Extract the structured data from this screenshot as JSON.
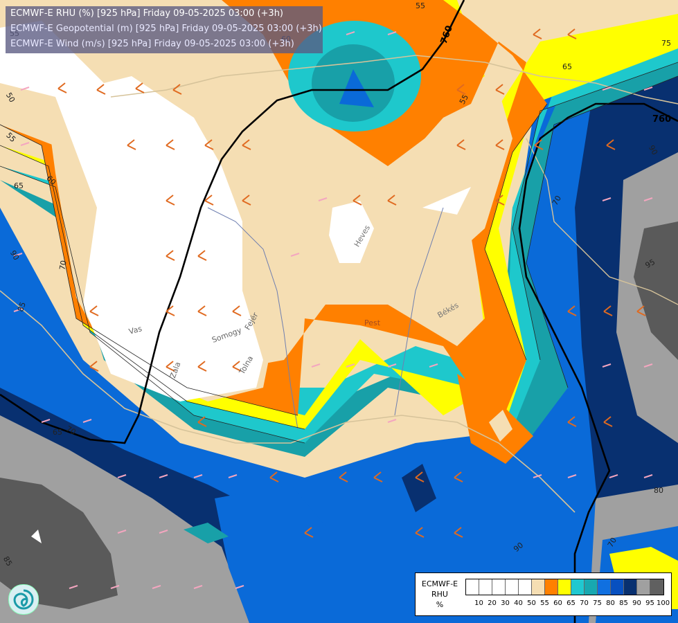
{
  "header": {
    "line1": "ECMWF-E RHU (%) [925 hPa] Friday 09-05-2025 03:00 (+3h)",
    "line2": "ECMWF-E Geopotential (m) [925 hPa] Friday 09-05-2025 03:00 (+3h)",
    "line3": "ECMWF-E Wind (m/s) [925 hPa] Friday 09-05-2025 03:00 (+3h)"
  },
  "legend": {
    "title_line1": "ECMWF-E",
    "title_line2": "RHU",
    "title_line3": "%",
    "swatches": [
      "#ffffff",
      "#ffffff",
      "#ffffff",
      "#ffffff",
      "#ffffff",
      "#f5deb3",
      "#ff8000",
      "#ffff00",
      "#20c8d0",
      "#18a8b0",
      "#1070e0",
      "#0850c0",
      "#083070",
      "#a0a0a0",
      "#606060"
    ],
    "labels": [
      "10",
      "20",
      "30",
      "40",
      "50",
      "55",
      "60",
      "65",
      "70",
      "75",
      "80",
      "85",
      "90",
      "95",
      "100"
    ]
  },
  "geopotential_labels": [
    "760",
    "760"
  ],
  "contour_labels": [
    "55",
    "50",
    "55",
    "60",
    "65",
    "70",
    "85",
    "90",
    "55",
    "65",
    "70",
    "75",
    "70",
    "80",
    "90",
    "90",
    "55",
    "60",
    "65",
    "70",
    "85",
    "95"
  ],
  "place_labels": [
    "Vas",
    "Zala",
    "Somogy",
    "Tolna",
    "Fejér",
    "Pest",
    "Heves",
    "Békés"
  ],
  "colors": {
    "white": "#ffffff",
    "wheat": "#f5deb3",
    "orange": "#ff8000",
    "yellow": "#ffff00",
    "cyan": "#1ec8cc",
    "teal": "#18a0a8",
    "blue": "#0a6ad8",
    "darkblue": "#083070",
    "gray": "#a0a0a0",
    "darkgray": "#5a5a5a"
  }
}
